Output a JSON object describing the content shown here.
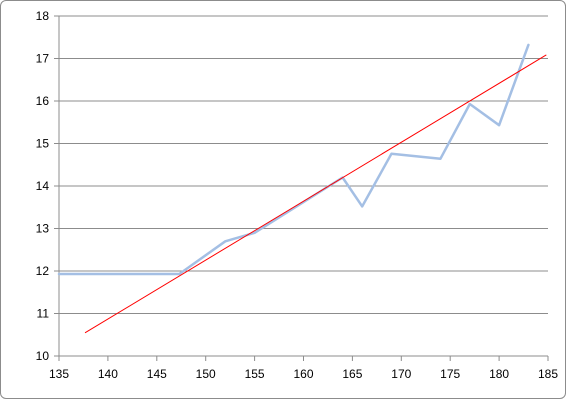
{
  "chart_data": {
    "type": "line",
    "title": "",
    "xlabel": "",
    "ylabel": "",
    "xlim": [
      135,
      185
    ],
    "ylim": [
      10,
      18
    ],
    "xticks": [
      135,
      140,
      145,
      150,
      155,
      160,
      165,
      170,
      175,
      180,
      185
    ],
    "yticks": [
      10,
      11,
      12,
      13,
      14,
      15,
      16,
      17,
      18
    ],
    "grid": "horizontal",
    "legend": "none",
    "series": [
      {
        "color": "#a4bfe4",
        "x": [
          135,
          147.3,
          152,
          155,
          164,
          166,
          169,
          174,
          177,
          180,
          183
        ],
        "y": [
          11.93,
          11.93,
          12.7,
          12.9,
          14.2,
          13.52,
          14.76,
          14.64,
          15.93,
          15.43,
          17.32
        ]
      },
      {
        "kind": "trendline",
        "color": "#ff0000",
        "x": [
          137.7,
          184.8
        ],
        "y": [
          10.55,
          17.08
        ]
      }
    ]
  }
}
